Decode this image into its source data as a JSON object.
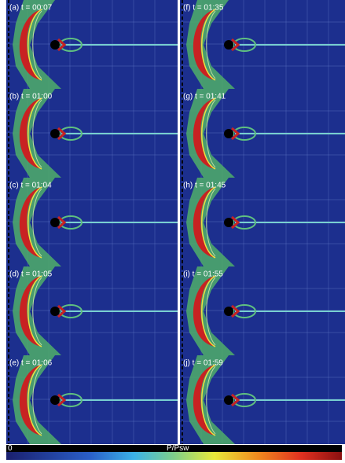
{
  "panels": [
    {
      "label": "(a) t = 00:07"
    },
    {
      "label": "(b) t = 01:00"
    },
    {
      "label": "(c) t = 01:04"
    },
    {
      "label": "(d) t = 01:05"
    },
    {
      "label": "(e) t = 01:06"
    },
    {
      "label": "(f) t = 01:35"
    },
    {
      "label": "(g) t = 01:41"
    },
    {
      "label": "(h) t = 01:45"
    },
    {
      "label": "(i) t = 01:55"
    },
    {
      "label": "(j) t = 01:59"
    }
  ],
  "colorbar": {
    "min_label": "0",
    "title": "P/Psw"
  }
}
